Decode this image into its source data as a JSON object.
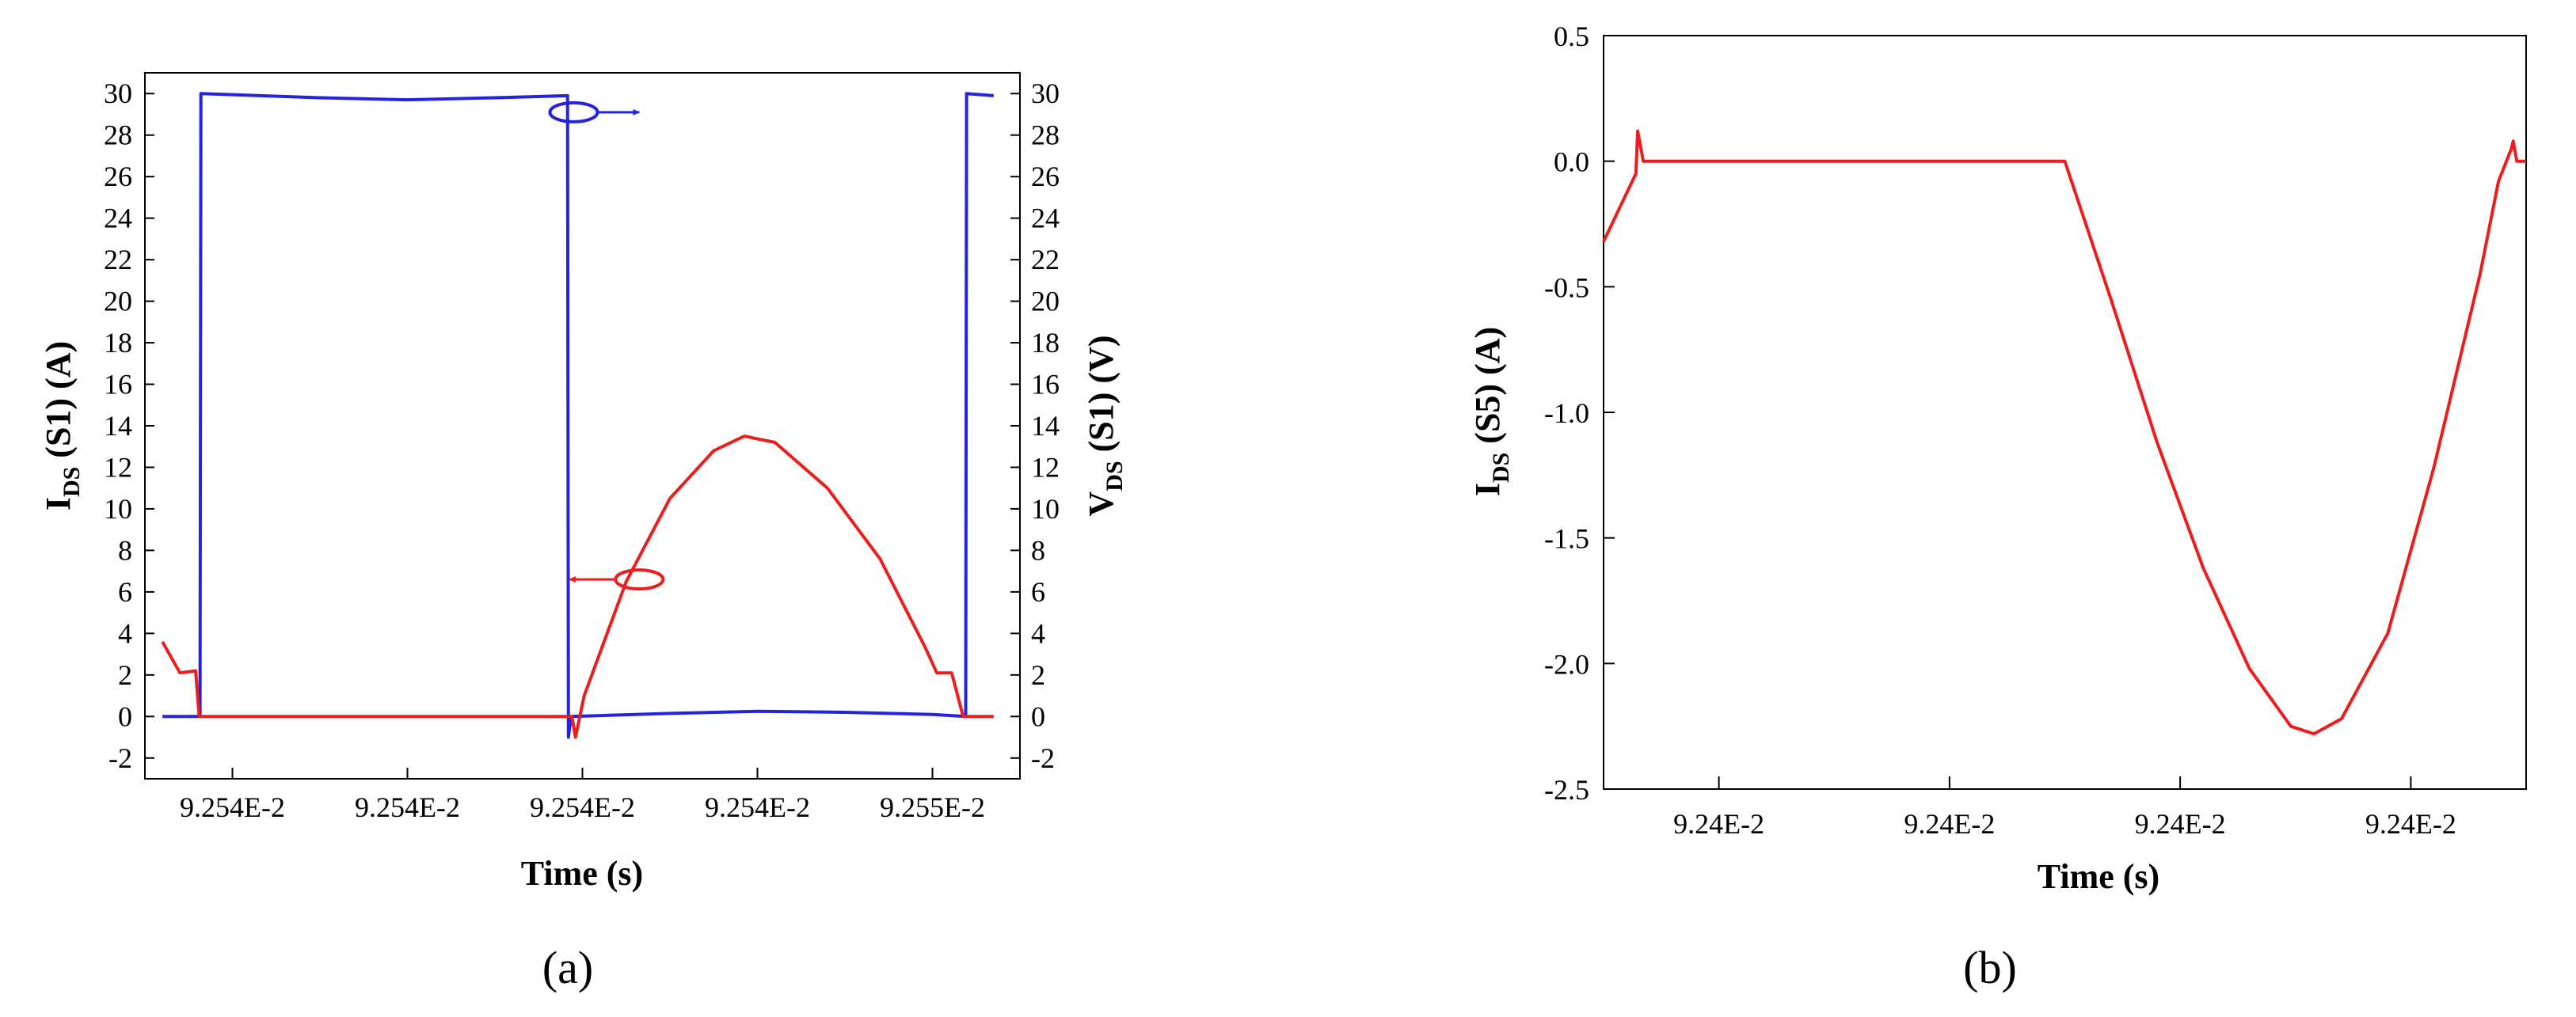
{
  "chart_data": [
    {
      "type": "line",
      "panel_label": "(a)",
      "xlabel": "Time (s)",
      "ylabel_left": {
        "main": "I",
        "sub": "DS",
        "rest": " (S1) (A)"
      },
      "ylabel_right": {
        "main": "V",
        "sub": "DS",
        "rest": " (S1) (V)"
      },
      "xlim": [
        0,
        1
      ],
      "x_tick_positions": [
        0.1,
        0.3,
        0.5,
        0.7,
        0.9
      ],
      "x_tick_labels": [
        "9.254E-2",
        "9.254E-2",
        "9.254E-2",
        "9.254E-2",
        "9.255E-2"
      ],
      "ylim_left": [
        -3,
        31
      ],
      "ylim_right": [
        -3,
        31
      ],
      "yticks_left": [
        -2,
        0,
        2,
        4,
        6,
        8,
        10,
        12,
        14,
        16,
        18,
        20,
        22,
        24,
        26,
        28,
        30
      ],
      "yticks_right": [
        -2,
        0,
        2,
        4,
        6,
        8,
        10,
        12,
        14,
        16,
        18,
        20,
        22,
        24,
        26,
        28,
        30
      ],
      "series": [
        {
          "axis": "right",
          "color": "#2323e0",
          "points": [
            [
              0.02,
              0
            ],
            [
              0.063,
              0
            ],
            [
              0.064,
              30
            ],
            [
              0.2,
              29.8
            ],
            [
              0.3,
              29.7
            ],
            [
              0.4,
              29.8
            ],
            [
              0.483,
              29.9
            ],
            [
              0.484,
              -1
            ],
            [
              0.487,
              0
            ],
            [
              0.6,
              0.15
            ],
            [
              0.7,
              0.25
            ],
            [
              0.8,
              0.2
            ],
            [
              0.9,
              0.1
            ],
            [
              0.938,
              0
            ],
            [
              0.939,
              30
            ],
            [
              0.97,
              29.9
            ]
          ]
        },
        {
          "axis": "left",
          "color": "#ee1c1c",
          "points": [
            [
              0.02,
              3.6
            ],
            [
              0.04,
              2.1
            ],
            [
              0.058,
              2.2
            ],
            [
              0.062,
              0
            ],
            [
              0.488,
              0
            ],
            [
              0.492,
              -1
            ],
            [
              0.502,
              1
            ],
            [
              0.55,
              6.5
            ],
            [
              0.6,
              10.5
            ],
            [
              0.65,
              12.8
            ],
            [
              0.685,
              13.5
            ],
            [
              0.72,
              13.2
            ],
            [
              0.78,
              11
            ],
            [
              0.84,
              7.6
            ],
            [
              0.892,
              3.3
            ],
            [
              0.905,
              2.1
            ],
            [
              0.922,
              2.1
            ],
            [
              0.935,
              0
            ],
            [
              0.97,
              0
            ]
          ]
        }
      ],
      "annotations": [
        {
          "target": "right-axis",
          "color": "#2323e0",
          "at": [
            0.49,
            29.1
          ],
          "arrow_to": [
            0.565,
            29.1
          ]
        },
        {
          "target": "left-axis",
          "color": "#ee1c1c",
          "at": [
            0.565,
            6.6
          ],
          "arrow_to": [
            0.485,
            6.6
          ]
        }
      ]
    },
    {
      "type": "line",
      "panel_label": "(b)",
      "xlabel": "Time (s)",
      "ylabel": {
        "main": "I",
        "sub": "DS",
        "rest": " (S5) (A)"
      },
      "xlim": [
        0,
        1
      ],
      "x_tick_positions": [
        0.125,
        0.375,
        0.625,
        0.875
      ],
      "x_tick_labels": [
        "9.24E-2",
        "9.24E-2",
        "9.24E-2",
        "9.24E-2"
      ],
      "ylim": [
        -2.5,
        0.5
      ],
      "yticks": [
        0.5,
        0.0,
        -0.5,
        -1.0,
        -1.5,
        -2.0,
        -2.5
      ],
      "ytick_labels": [
        "0.5",
        "0.0",
        "-0.5",
        "-1.0",
        "-1.5",
        "-2.0",
        "-2.5"
      ],
      "series": [
        {
          "color": "#ee1c1c",
          "points": [
            [
              0,
              -0.32
            ],
            [
              0.035,
              -0.05
            ],
            [
              0.037,
              0.12
            ],
            [
              0.043,
              0
            ],
            [
              0.5,
              0
            ],
            [
              0.55,
              -0.55
            ],
            [
              0.6,
              -1.12
            ],
            [
              0.65,
              -1.62
            ],
            [
              0.7,
              -2.02
            ],
            [
              0.745,
              -2.25
            ],
            [
              0.77,
              -2.28
            ],
            [
              0.8,
              -2.22
            ],
            [
              0.85,
              -1.88
            ],
            [
              0.9,
              -1.22
            ],
            [
              0.95,
              -0.45
            ],
            [
              0.97,
              -0.08
            ],
            [
              0.984,
              0.05
            ],
            [
              0.986,
              0.08
            ],
            [
              0.99,
              0
            ],
            [
              1,
              0
            ]
          ]
        }
      ]
    }
  ]
}
